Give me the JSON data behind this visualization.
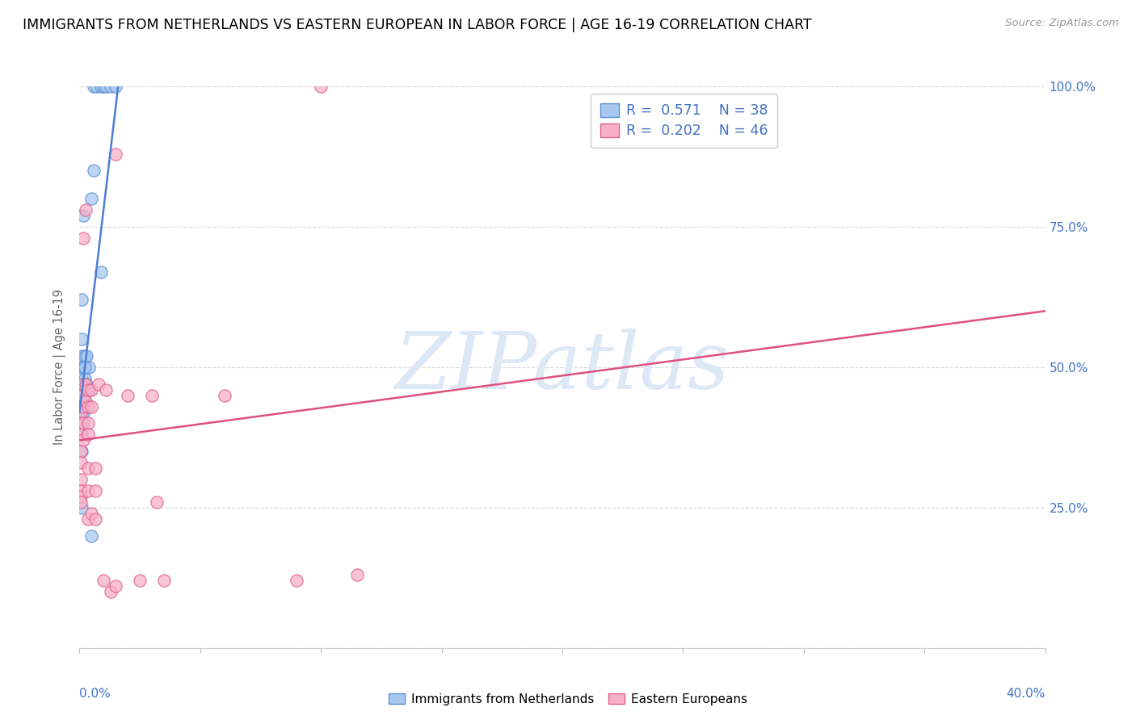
{
  "title": "IMMIGRANTS FROM NETHERLANDS VS EASTERN EUROPEAN IN LABOR FORCE | AGE 16-19 CORRELATION CHART",
  "source": "Source: ZipAtlas.com",
  "ylabel": "In Labor Force | Age 16-19",
  "legend": {
    "R1": "0.571",
    "N1": "38",
    "R2": "0.202",
    "N2": "46"
  },
  "netherlands_points": [
    [
      0.0,
      43
    ],
    [
      0.5,
      80
    ],
    [
      0.6,
      100
    ],
    [
      0.7,
      100
    ],
    [
      0.9,
      100
    ],
    [
      1.0,
      100
    ],
    [
      1.1,
      100
    ],
    [
      1.3,
      100
    ],
    [
      1.5,
      100
    ],
    [
      0.6,
      85
    ],
    [
      0.9,
      67
    ],
    [
      0.15,
      77
    ],
    [
      0.08,
      62
    ],
    [
      0.08,
      55
    ],
    [
      0.08,
      52
    ],
    [
      0.08,
      50
    ],
    [
      0.08,
      48
    ],
    [
      0.08,
      46
    ],
    [
      0.08,
      44
    ],
    [
      0.08,
      42
    ],
    [
      0.08,
      40
    ],
    [
      0.08,
      38
    ],
    [
      0.08,
      35
    ],
    [
      0.15,
      50
    ],
    [
      0.15,
      47
    ],
    [
      0.15,
      44
    ],
    [
      0.15,
      42
    ],
    [
      0.22,
      52
    ],
    [
      0.22,
      48
    ],
    [
      0.22,
      44
    ],
    [
      0.3,
      52
    ],
    [
      0.3,
      47
    ],
    [
      0.4,
      50
    ],
    [
      0.4,
      46
    ],
    [
      0.1,
      25
    ],
    [
      0.5,
      20
    ],
    [
      0.08,
      43
    ],
    [
      0.22,
      50
    ]
  ],
  "eastern_points": [
    [
      0.05,
      42
    ],
    [
      0.05,
      40
    ],
    [
      0.05,
      38
    ],
    [
      0.05,
      35
    ],
    [
      0.05,
      33
    ],
    [
      0.05,
      30
    ],
    [
      0.05,
      28
    ],
    [
      0.05,
      27
    ],
    [
      0.05,
      26
    ],
    [
      0.15,
      73
    ],
    [
      0.15,
      47
    ],
    [
      0.15,
      45
    ],
    [
      0.15,
      43
    ],
    [
      0.15,
      40
    ],
    [
      0.15,
      37
    ],
    [
      0.25,
      78
    ],
    [
      0.25,
      47
    ],
    [
      0.25,
      44
    ],
    [
      0.35,
      46
    ],
    [
      0.35,
      43
    ],
    [
      0.35,
      40
    ],
    [
      0.35,
      38
    ],
    [
      0.35,
      32
    ],
    [
      0.35,
      28
    ],
    [
      0.35,
      23
    ],
    [
      0.5,
      46
    ],
    [
      0.5,
      43
    ],
    [
      0.5,
      24
    ],
    [
      0.65,
      32
    ],
    [
      0.65,
      28
    ],
    [
      0.65,
      23
    ],
    [
      0.8,
      47
    ],
    [
      1.0,
      12
    ],
    [
      1.1,
      46
    ],
    [
      1.3,
      10
    ],
    [
      1.5,
      88
    ],
    [
      1.5,
      11
    ],
    [
      2.0,
      45
    ],
    [
      2.5,
      12
    ],
    [
      3.0,
      45
    ],
    [
      3.2,
      26
    ],
    [
      3.5,
      12
    ],
    [
      6.0,
      45
    ],
    [
      9.0,
      12
    ],
    [
      10.0,
      100
    ],
    [
      11.5,
      13
    ]
  ],
  "blue_line_x": [
    0.0,
    1.6
  ],
  "blue_line_y": [
    42,
    100
  ],
  "pink_line_x": [
    0.0,
    40.0
  ],
  "pink_line_y": [
    37,
    60
  ],
  "blue_fill": "#a8c8f0",
  "blue_edge": "#5b8fd4",
  "pink_fill": "#f8b0c8",
  "pink_edge": "#e06090",
  "trend_blue": "#4a7fd4",
  "trend_pink": "#e05080",
  "right_axis_color": "#4472c4",
  "legend_text_color": "#4472c4",
  "xlim": [
    0.0,
    40.0
  ],
  "ylim": [
    0.0,
    100.0
  ],
  "yticks": [
    0,
    25,
    50,
    75,
    100
  ],
  "ytick_labels": [
    "",
    "25.0%",
    "50.0%",
    "75.0%",
    "100.0%"
  ],
  "xtick_pct_left": "0.0%",
  "xtick_pct_right": "40.0%",
  "dot_size": 120,
  "dot_alpha": 0.75,
  "dot_linewidth": 1.0,
  "watermark_text": "ZIPatlas",
  "watermark_fontsize": 72,
  "watermark_color": "#dce8f5",
  "bottom_legend_labels": [
    "Immigrants from Netherlands",
    "Eastern Europeans"
  ]
}
